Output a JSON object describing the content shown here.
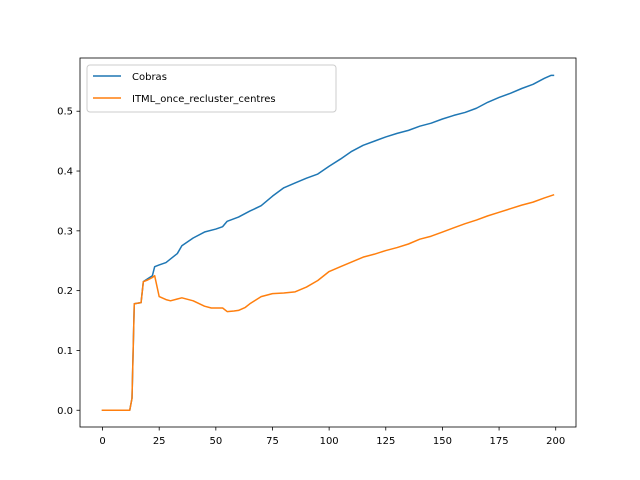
{
  "chart_data": {
    "type": "line",
    "title": "",
    "xlabel": "",
    "ylabel": "",
    "xlim": [
      -9.95,
      208.95
    ],
    "ylim": [
      -0.028,
      0.589
    ],
    "grid": false,
    "legend_placement": "top-left",
    "x_ticks": [
      0,
      25,
      50,
      75,
      100,
      125,
      150,
      175,
      200
    ],
    "y_ticks": [
      0.0,
      0.1,
      0.2,
      0.3,
      0.4,
      0.5
    ],
    "x_tick_labels": [
      "0",
      "25",
      "50",
      "75",
      "100",
      "125",
      "150",
      "175",
      "200"
    ],
    "y_tick_labels": [
      "0.0",
      "0.1",
      "0.2",
      "0.3",
      "0.4",
      "0.5"
    ],
    "series": [
      {
        "name": "Cobras",
        "color": "#1f77b4",
        "points": [
          [
            0,
            0
          ],
          [
            12,
            0
          ],
          [
            13,
            0.02
          ],
          [
            14,
            0.178
          ],
          [
            17,
            0.18
          ],
          [
            18,
            0.215
          ],
          [
            20,
            0.22
          ],
          [
            22,
            0.225
          ],
          [
            23,
            0.24
          ],
          [
            25,
            0.243
          ],
          [
            28,
            0.247
          ],
          [
            30,
            0.253
          ],
          [
            33,
            0.262
          ],
          [
            35,
            0.275
          ],
          [
            40,
            0.288
          ],
          [
            45,
            0.298
          ],
          [
            50,
            0.303
          ],
          [
            53,
            0.307
          ],
          [
            55,
            0.316
          ],
          [
            60,
            0.323
          ],
          [
            65,
            0.333
          ],
          [
            70,
            0.342
          ],
          [
            75,
            0.358
          ],
          [
            80,
            0.372
          ],
          [
            85,
            0.38
          ],
          [
            90,
            0.388
          ],
          [
            95,
            0.395
          ],
          [
            100,
            0.408
          ],
          [
            105,
            0.42
          ],
          [
            110,
            0.433
          ],
          [
            115,
            0.443
          ],
          [
            120,
            0.45
          ],
          [
            125,
            0.457
          ],
          [
            130,
            0.463
          ],
          [
            135,
            0.468
          ],
          [
            140,
            0.475
          ],
          [
            145,
            0.48
          ],
          [
            150,
            0.487
          ],
          [
            155,
            0.493
          ],
          [
            160,
            0.498
          ],
          [
            165,
            0.505
          ],
          [
            170,
            0.515
          ],
          [
            175,
            0.523
          ],
          [
            180,
            0.53
          ],
          [
            185,
            0.538
          ],
          [
            190,
            0.545
          ],
          [
            195,
            0.555
          ],
          [
            198,
            0.56
          ],
          [
            199,
            0.56
          ]
        ]
      },
      {
        "name": "ITML_once_recluster_centres",
        "color": "#ff7f0e",
        "points": [
          [
            0,
            0
          ],
          [
            12,
            0
          ],
          [
            13,
            0.02
          ],
          [
            14,
            0.178
          ],
          [
            17,
            0.18
          ],
          [
            18,
            0.215
          ],
          [
            20,
            0.218
          ],
          [
            22,
            0.222
          ],
          [
            23,
            0.225
          ],
          [
            25,
            0.19
          ],
          [
            28,
            0.185
          ],
          [
            30,
            0.183
          ],
          [
            33,
            0.186
          ],
          [
            35,
            0.188
          ],
          [
            40,
            0.183
          ],
          [
            45,
            0.174
          ],
          [
            48,
            0.171
          ],
          [
            50,
            0.171
          ],
          [
            53,
            0.171
          ],
          [
            55,
            0.165
          ],
          [
            58,
            0.166
          ],
          [
            60,
            0.167
          ],
          [
            63,
            0.172
          ],
          [
            65,
            0.178
          ],
          [
            70,
            0.19
          ],
          [
            75,
            0.195
          ],
          [
            80,
            0.196
          ],
          [
            85,
            0.198
          ],
          [
            90,
            0.206
          ],
          [
            95,
            0.217
          ],
          [
            100,
            0.232
          ],
          [
            105,
            0.24
          ],
          [
            110,
            0.248
          ],
          [
            115,
            0.256
          ],
          [
            120,
            0.261
          ],
          [
            125,
            0.267
          ],
          [
            130,
            0.272
          ],
          [
            135,
            0.278
          ],
          [
            140,
            0.286
          ],
          [
            145,
            0.291
          ],
          [
            150,
            0.298
          ],
          [
            155,
            0.305
          ],
          [
            160,
            0.312
          ],
          [
            165,
            0.318
          ],
          [
            170,
            0.325
          ],
          [
            175,
            0.331
          ],
          [
            180,
            0.337
          ],
          [
            185,
            0.343
          ],
          [
            190,
            0.348
          ],
          [
            195,
            0.355
          ],
          [
            199,
            0.36
          ]
        ]
      }
    ]
  }
}
